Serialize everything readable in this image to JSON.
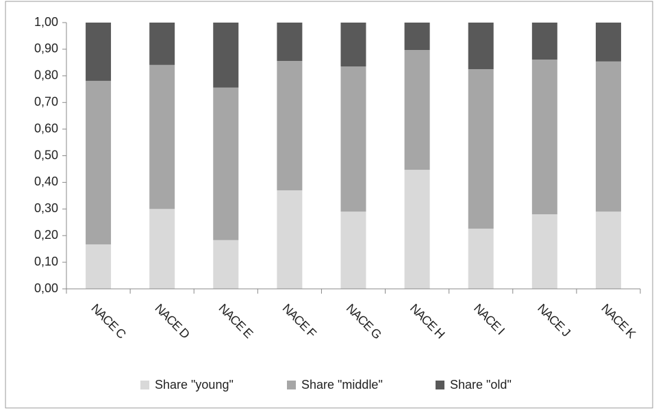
{
  "chart_data": {
    "type": "stacked_bar",
    "categories": [
      "NACE C",
      "NACE D",
      "NACE E",
      "NACE F",
      "NACE G",
      "NACE H",
      "NACE I",
      "NACE J",
      "NACE K"
    ],
    "series": [
      {
        "name": "Share \"young\"",
        "color": "#d9d9d9",
        "values": [
          0.167,
          0.3,
          0.183,
          0.37,
          0.29,
          0.447,
          0.226,
          0.28,
          0.29
        ]
      },
      {
        "name": "Share \"middle\"",
        "color": "#a6a6a6",
        "values": [
          0.614,
          0.541,
          0.573,
          0.486,
          0.545,
          0.45,
          0.599,
          0.581,
          0.564
        ]
      },
      {
        "name": "Share \"old\"",
        "color": "#595959",
        "values": [
          0.219,
          0.159,
          0.244,
          0.144,
          0.165,
          0.103,
          0.175,
          0.139,
          0.146
        ]
      }
    ],
    "ylim": [
      0,
      1
    ],
    "yticks": [
      {
        "value": 0,
        "label": "0,00"
      },
      {
        "value": 0.1,
        "label": "0,10"
      },
      {
        "value": 0.2,
        "label": "0,20"
      },
      {
        "value": 0.3,
        "label": "0,30"
      },
      {
        "value": 0.4,
        "label": "0,40"
      },
      {
        "value": 0.5,
        "label": "0,50"
      },
      {
        "value": 0.6,
        "label": "0,60"
      },
      {
        "value": 0.7,
        "label": "0,70"
      },
      {
        "value": 0.8,
        "label": "0,80"
      },
      {
        "value": 0.9,
        "label": "0,90"
      },
      {
        "value": 1,
        "label": "1,00"
      }
    ],
    "grid": false,
    "legend": "bottom"
  }
}
